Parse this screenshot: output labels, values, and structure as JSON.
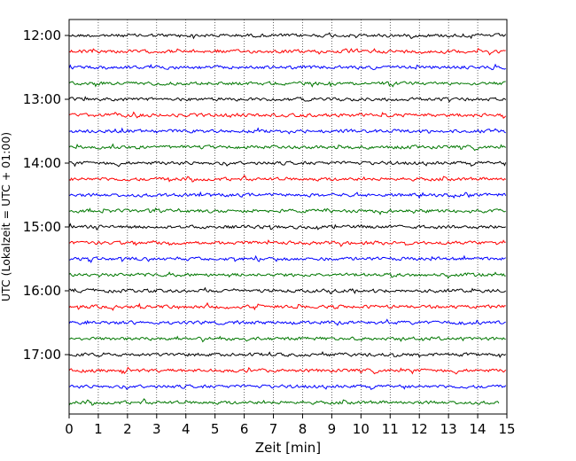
{
  "chart_data": {
    "type": "line",
    "title": "",
    "xlabel": "Zeit  [min]",
    "ylabel": "UTC (Lokalzeit = UTC + 01:00)",
    "xlim": [
      0,
      15
    ],
    "x_ticks": [
      "0",
      "1",
      "2",
      "3",
      "4",
      "5",
      "6",
      "7",
      "8",
      "9",
      "10",
      "11",
      "12",
      "13",
      "14",
      "15"
    ],
    "y_axis": {
      "start_time": "12:00",
      "trace_interval_minutes": 15,
      "trace_count": 24,
      "inverted": true
    },
    "y_ticks": [
      {
        "label": "12:00",
        "trace_index": 0
      },
      {
        "label": "13:00",
        "trace_index": 4
      },
      {
        "label": "14:00",
        "trace_index": 8
      },
      {
        "label": "15:00",
        "trace_index": 12
      },
      {
        "label": "16:00",
        "trace_index": 16
      },
      {
        "label": "17:00",
        "trace_index": 20
      }
    ],
    "trace_colors": [
      "#000000",
      "#ff0000",
      "#0000ff",
      "#007700"
    ],
    "grid": {
      "x": true,
      "y": false,
      "style": "dotted"
    },
    "last_trace_end_minute": 14.75,
    "note_values": "Seismogram traces: one 15-minute segment per row, colors cycle black, red, blue, green"
  }
}
